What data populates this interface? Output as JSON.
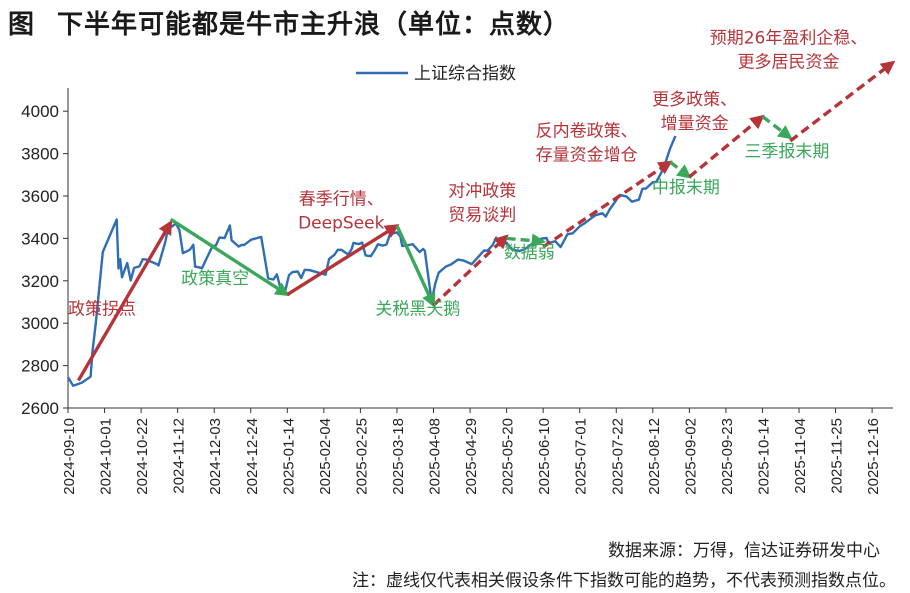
{
  "title": {
    "label": "图",
    "text": "下半年可能都是牛市主升浪（单位：点数）"
  },
  "source": "数据来源：万得，信达证券研发中心",
  "note": "注：虚线仅代表相关假设条件下指数可能的趋势，不代表预测指数点位。",
  "colors": {
    "line": "#2f6db5",
    "red": "#b5343a",
    "green": "#3aa75a"
  },
  "chart_data": {
    "type": "line",
    "ylim": [
      2600,
      4100
    ],
    "yticks": [
      2600,
      2800,
      3000,
      3200,
      3400,
      3600,
      3800,
      4000
    ],
    "xlim": [
      "2024-09-10",
      "2025-12-28"
    ],
    "xticks": [
      "2024-09-10",
      "2024-10-01",
      "2024-10-22",
      "2024-11-12",
      "2024-12-03",
      "2024-12-24",
      "2025-01-14",
      "2025-02-04",
      "2025-02-25",
      "2025-03-18",
      "2025-04-08",
      "2025-04-29",
      "2025-05-20",
      "2025-06-10",
      "2025-07-01",
      "2025-07-22",
      "2025-08-12",
      "2025-09-02",
      "2025-09-23",
      "2025-10-14",
      "2025-11-04",
      "2025-11-25",
      "2025-12-16"
    ],
    "legend": "上证综合指数",
    "series": [
      {
        "name": "上证综合指数",
        "points": [
          [
            "2024-09-10",
            2745
          ],
          [
            "2024-09-13",
            2705
          ],
          [
            "2024-09-18",
            2720
          ],
          [
            "2024-09-23",
            2748
          ],
          [
            "2024-09-24",
            2863
          ],
          [
            "2024-09-26",
            3000
          ],
          [
            "2024-09-27",
            3087
          ],
          [
            "2024-09-30",
            3336
          ],
          [
            "2024-10-08",
            3489
          ],
          [
            "2024-10-09",
            3258
          ],
          [
            "2024-10-10",
            3302
          ],
          [
            "2024-10-11",
            3217
          ],
          [
            "2024-10-14",
            3284
          ],
          [
            "2024-10-16",
            3202
          ],
          [
            "2024-10-18",
            3261
          ],
          [
            "2024-10-21",
            3268
          ],
          [
            "2024-10-23",
            3302
          ],
          [
            "2024-10-25",
            3300
          ],
          [
            "2024-10-29",
            3286
          ],
          [
            "2024-10-31",
            3279
          ],
          [
            "2024-11-01",
            3272
          ],
          [
            "2024-11-05",
            3387
          ],
          [
            "2024-11-07",
            3470
          ],
          [
            "2024-11-08",
            3452
          ],
          [
            "2024-11-11",
            3470
          ],
          [
            "2024-11-13",
            3439
          ],
          [
            "2024-11-15",
            3330
          ],
          [
            "2024-11-19",
            3346
          ],
          [
            "2024-11-21",
            3370
          ],
          [
            "2024-11-22",
            3267
          ],
          [
            "2024-11-26",
            3260
          ],
          [
            "2024-11-28",
            3295
          ],
          [
            "2024-12-02",
            3363
          ],
          [
            "2024-12-04",
            3367
          ],
          [
            "2024-12-06",
            3404
          ],
          [
            "2024-12-09",
            3402
          ],
          [
            "2024-12-10",
            3422
          ],
          [
            "2024-12-12",
            3461
          ],
          [
            "2024-12-13",
            3391
          ],
          [
            "2024-12-17",
            3362
          ],
          [
            "2024-12-19",
            3370
          ],
          [
            "2024-12-20",
            3368
          ],
          [
            "2024-12-24",
            3393
          ],
          [
            "2024-12-26",
            3398
          ],
          [
            "2024-12-27",
            3400
          ],
          [
            "2024-12-30",
            3407
          ],
          [
            "2025-01-02",
            3262
          ],
          [
            "2025-01-03",
            3211
          ],
          [
            "2025-01-06",
            3206
          ],
          [
            "2025-01-08",
            3230
          ],
          [
            "2025-01-10",
            3168
          ],
          [
            "2025-01-13",
            3160
          ],
          [
            "2025-01-15",
            3227
          ],
          [
            "2025-01-17",
            3241
          ],
          [
            "2025-01-20",
            3244
          ],
          [
            "2025-01-22",
            3213
          ],
          [
            "2025-01-24",
            3252
          ],
          [
            "2025-01-27",
            3250
          ],
          [
            "2025-02-05",
            3229
          ],
          [
            "2025-02-07",
            3303
          ],
          [
            "2025-02-10",
            3322
          ],
          [
            "2025-02-12",
            3346
          ],
          [
            "2025-02-14",
            3346
          ],
          [
            "2025-02-18",
            3324
          ],
          [
            "2025-02-20",
            3350
          ],
          [
            "2025-02-21",
            3379
          ],
          [
            "2025-02-24",
            3373
          ],
          [
            "2025-02-26",
            3380
          ],
          [
            "2025-02-28",
            3320
          ],
          [
            "2025-03-03",
            3316
          ],
          [
            "2025-03-05",
            3341
          ],
          [
            "2025-03-07",
            3372
          ],
          [
            "2025-03-10",
            3366
          ],
          [
            "2025-03-12",
            3371
          ],
          [
            "2025-03-14",
            3419
          ],
          [
            "2025-03-17",
            3426
          ],
          [
            "2025-03-18",
            3429
          ],
          [
            "2025-03-20",
            3408
          ],
          [
            "2025-03-21",
            3364
          ],
          [
            "2025-03-25",
            3369
          ],
          [
            "2025-03-27",
            3373
          ],
          [
            "2025-03-31",
            3336
          ],
          [
            "2025-04-02",
            3350
          ],
          [
            "2025-04-03",
            3342
          ],
          [
            "2025-04-07",
            3097
          ],
          [
            "2025-04-08",
            3146
          ],
          [
            "2025-04-09",
            3186
          ],
          [
            "2025-04-11",
            3238
          ],
          [
            "2025-04-15",
            3267
          ],
          [
            "2025-04-18",
            3277
          ],
          [
            "2025-04-22",
            3300
          ],
          [
            "2025-04-25",
            3296
          ],
          [
            "2025-04-30",
            3279
          ],
          [
            "2025-05-07",
            3343
          ],
          [
            "2025-05-09",
            3342
          ],
          [
            "2025-05-12",
            3369
          ],
          [
            "2025-05-14",
            3404
          ],
          [
            "2025-05-16",
            3367
          ],
          [
            "2025-05-20",
            3380
          ],
          [
            "2025-05-23",
            3348
          ],
          [
            "2025-05-27",
            3340
          ],
          [
            "2025-05-30",
            3347
          ],
          [
            "2025-06-04",
            3377
          ],
          [
            "2025-06-06",
            3385
          ],
          [
            "2025-06-09",
            3399
          ],
          [
            "2025-06-12",
            3402
          ],
          [
            "2025-06-13",
            3377
          ],
          [
            "2025-06-17",
            3387
          ],
          [
            "2025-06-20",
            3359
          ],
          [
            "2025-06-24",
            3420
          ],
          [
            "2025-06-27",
            3424
          ],
          [
            "2025-07-01",
            3457
          ],
          [
            "2025-07-04",
            3472
          ],
          [
            "2025-07-08",
            3497
          ],
          [
            "2025-07-10",
            3509
          ],
          [
            "2025-07-14",
            3519
          ],
          [
            "2025-07-16",
            3503
          ],
          [
            "2025-07-18",
            3534
          ],
          [
            "2025-07-22",
            3581
          ],
          [
            "2025-07-24",
            3605
          ],
          [
            "2025-07-28",
            3597
          ],
          [
            "2025-07-31",
            3573
          ],
          [
            "2025-08-04",
            3583
          ],
          [
            "2025-08-06",
            3634
          ],
          [
            "2025-08-08",
            3635
          ],
          [
            "2025-08-12",
            3665
          ],
          [
            "2025-08-14",
            3666
          ],
          [
            "2025-08-18",
            3728
          ],
          [
            "2025-08-22",
            3825
          ],
          [
            "2025-08-25",
            3883
          ]
        ]
      }
    ],
    "arrows": [
      {
        "color": "red",
        "style": "solid",
        "from": [
          "2024-09-16",
          2730
        ],
        "to": [
          "2024-11-08",
          3475
        ]
      },
      {
        "color": "green",
        "style": "solid",
        "from": [
          "2024-11-08",
          3490
        ],
        "to": [
          "2025-01-14",
          3135
        ]
      },
      {
        "color": "red",
        "style": "solid",
        "from": [
          "2025-01-14",
          3135
        ],
        "to": [
          "2025-03-18",
          3460
        ]
      },
      {
        "color": "green",
        "style": "solid",
        "from": [
          "2025-03-18",
          3460
        ],
        "to": [
          "2025-04-08",
          3085
        ]
      },
      {
        "color": "red",
        "style": "dashed",
        "from": [
          "2025-04-08",
          3085
        ],
        "to": [
          "2025-05-20",
          3410
        ]
      },
      {
        "color": "green",
        "style": "dashed",
        "from": [
          "2025-05-20",
          3400
        ],
        "to": [
          "2025-06-10",
          3385
        ]
      },
      {
        "color": "red",
        "style": "dashed",
        "from": [
          "2025-06-10",
          3360
        ],
        "to": [
          "2025-08-22",
          3760
        ]
      },
      {
        "color": "green",
        "style": "dashed",
        "from": [
          "2025-08-22",
          3760
        ],
        "to": [
          "2025-09-02",
          3690
        ]
      },
      {
        "color": "red",
        "style": "dashed",
        "from": [
          "2025-09-02",
          3690
        ],
        "to": [
          "2025-10-14",
          3975
        ]
      },
      {
        "color": "green",
        "style": "dashed",
        "from": [
          "2025-10-14",
          3975
        ],
        "to": [
          "2025-10-30",
          3875
        ]
      },
      {
        "color": "red",
        "style": "dashed",
        "from": [
          "2025-10-30",
          3860
        ],
        "to": [
          "2025-12-28",
          4230
        ]
      }
    ],
    "annotations": [
      {
        "color": "red",
        "lines": [
          "政策拐点"
        ],
        "date": "2024-09-10",
        "y": 3040,
        "anchor": "start"
      },
      {
        "color": "green",
        "lines": [
          "政策真空"
        ],
        "date": "2024-11-14",
        "y": 3185,
        "anchor": "start"
      },
      {
        "color": "red",
        "lines": [
          "春季行情、",
          "DeepSeek"
        ],
        "date": "2025-02-14",
        "y": 3560,
        "anchor": "middle"
      },
      {
        "color": "green",
        "lines": [
          "关税黑天鹅"
        ],
        "date": "2025-03-30",
        "y": 3040,
        "anchor": "middle"
      },
      {
        "color": "red",
        "lines": [
          "对冲政策",
          "贸易谈判"
        ],
        "date": "2025-05-06",
        "y": 3598,
        "anchor": "middle"
      },
      {
        "color": "green",
        "lines": [
          "数据弱"
        ],
        "date": "2025-06-02",
        "y": 3308,
        "anchor": "middle"
      },
      {
        "color": "red",
        "lines": [
          "反内卷政策、",
          "存量资金增仓"
        ],
        "date": "2025-07-05",
        "y": 3880,
        "anchor": "middle"
      },
      {
        "color": "green",
        "lines": [
          "中报末期"
        ],
        "date": "2025-08-31",
        "y": 3615,
        "anchor": "middle"
      },
      {
        "color": "red",
        "lines": [
          "更多政策、",
          "增量资金"
        ],
        "date": "2025-09-05",
        "y": 4030,
        "anchor": "middle"
      },
      {
        "color": "green",
        "lines": [
          "三季报末期"
        ],
        "date": "2025-10-28",
        "y": 3785,
        "anchor": "middle"
      },
      {
        "color": "red",
        "lines": [
          "预期26年盈利企稳、",
          "更多居民资金"
        ],
        "date": "2025-10-29",
        "y": 4320,
        "anchor": "middle"
      }
    ]
  }
}
